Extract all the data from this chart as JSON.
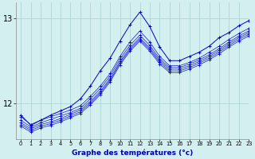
{
  "title": "Graphe des températures (°c)",
  "background_color": "#d4efef",
  "grid_color": "#a8d0d0",
  "line_color": "#0000cc",
  "xlim": [
    -0.5,
    23
  ],
  "ylim": [
    11.58,
    13.18
  ],
  "yticks": [
    12,
    13
  ],
  "xticks": [
    0,
    1,
    2,
    3,
    4,
    5,
    6,
    7,
    8,
    9,
    10,
    11,
    12,
    13,
    14,
    15,
    16,
    17,
    18,
    19,
    20,
    21,
    22,
    23
  ],
  "series": [
    [
      11.84,
      11.75,
      11.8,
      11.84,
      11.88,
      11.92,
      11.97,
      12.08,
      12.2,
      12.35,
      12.55,
      12.72,
      12.85,
      12.72,
      12.55,
      12.44,
      12.44,
      12.48,
      12.53,
      12.6,
      12.67,
      12.75,
      12.82,
      12.88
    ],
    [
      11.8,
      11.72,
      11.77,
      11.81,
      11.85,
      11.89,
      11.94,
      12.05,
      12.17,
      12.32,
      12.52,
      12.68,
      12.8,
      12.68,
      12.52,
      12.42,
      12.42,
      12.46,
      12.51,
      12.57,
      12.64,
      12.72,
      12.79,
      12.85
    ],
    [
      11.77,
      11.7,
      11.75,
      11.78,
      11.82,
      11.87,
      11.92,
      12.02,
      12.14,
      12.29,
      12.49,
      12.65,
      12.77,
      12.65,
      12.5,
      12.4,
      12.4,
      12.44,
      12.49,
      12.55,
      12.62,
      12.7,
      12.77,
      12.83
    ],
    [
      11.75,
      11.68,
      11.73,
      11.76,
      11.8,
      11.85,
      11.9,
      12.0,
      12.12,
      12.27,
      12.47,
      12.63,
      12.75,
      12.63,
      12.48,
      12.38,
      12.38,
      12.42,
      12.47,
      12.53,
      12.6,
      12.68,
      12.75,
      12.81
    ],
    [
      11.73,
      11.66,
      11.71,
      11.74,
      11.78,
      11.83,
      11.88,
      11.98,
      12.1,
      12.25,
      12.45,
      12.61,
      12.73,
      12.61,
      12.46,
      12.36,
      12.36,
      12.4,
      12.45,
      12.51,
      12.58,
      12.66,
      12.73,
      12.79
    ]
  ],
  "peak_series": [
    11.86,
    11.74,
    11.8,
    11.86,
    11.91,
    11.96,
    12.05,
    12.2,
    12.38,
    12.53,
    12.73,
    12.92,
    13.07,
    12.9,
    12.66,
    12.5,
    12.5,
    12.55,
    12.6,
    12.67,
    12.77,
    12.83,
    12.91,
    12.97
  ]
}
